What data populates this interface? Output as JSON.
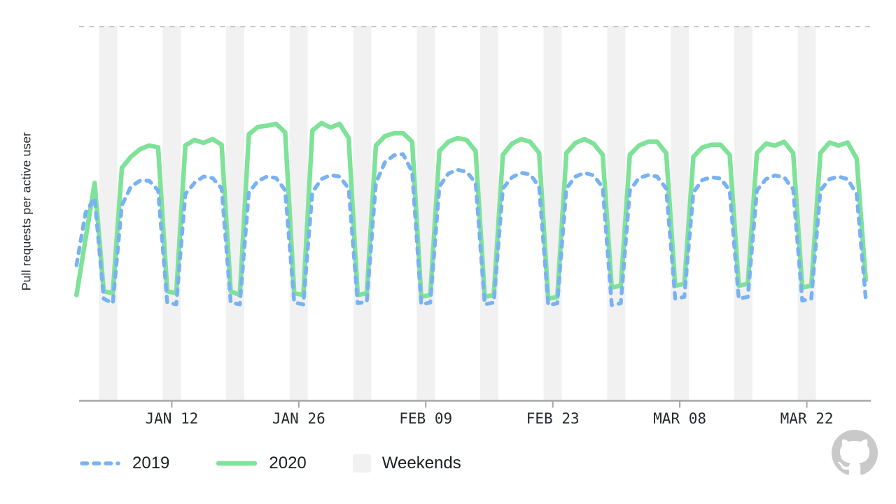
{
  "chart_data": {
    "type": "line",
    "title": "",
    "ylabel": "Pull requests per active user",
    "xlabel": "",
    "x_axis": {
      "tick_labels": [
        "JAN 12",
        "JAN 26",
        "FEB 09",
        "FEB 23",
        "MAR 08",
        "MAR 22"
      ],
      "tick_day_indices": [
        11,
        25,
        39,
        53,
        67,
        81
      ],
      "days_shown": 88,
      "start_day": "JAN 01"
    },
    "y_axis": {
      "tick_labels": [],
      "note": "axis unlabeled; values are relative units 0-100 where 100 = top dashed gridline",
      "range": [
        0,
        100
      ],
      "top_gridline": 100
    },
    "grid": {
      "top_dashed_gridline": true,
      "other_gridlines": false
    },
    "legend_position": "bottom-left",
    "weekend_bands": {
      "first_start_day_index": 3,
      "count": 12,
      "length_days": 2,
      "color": "#f1f1f1"
    },
    "series": [
      {
        "name": "2020",
        "style": "solid",
        "color": "#7ee298",
        "values": [
          28,
          43,
          58,
          29,
          28.5,
          62,
          65,
          67,
          68,
          67.5,
          29,
          28.5,
          68,
          69.5,
          68.7,
          69.7,
          68.2,
          29,
          28,
          71,
          73,
          73.3,
          73.8,
          71.5,
          28.5,
          28,
          72,
          74,
          72.8,
          73.8,
          70,
          28,
          28.5,
          68,
          70.5,
          71.3,
          71.3,
          69,
          27.5,
          28,
          66.5,
          69,
          70,
          69.5,
          66.5,
          27.5,
          28,
          65.5,
          68.5,
          69.7,
          69,
          66,
          27,
          27.5,
          66,
          68.7,
          69.7,
          68.5,
          65.5,
          30,
          30.5,
          65.5,
          68,
          69,
          69,
          66,
          30.5,
          31,
          65,
          67.5,
          68.2,
          68.2,
          65.5,
          30.5,
          31,
          66,
          68.5,
          68,
          69,
          66,
          30,
          30.5,
          66,
          68.8,
          68,
          68.8,
          64.5,
          32
        ]
      },
      {
        "name": "2019",
        "style": "dashed",
        "color": "#79b2f2",
        "values": [
          36,
          50,
          54,
          27,
          25.8,
          52,
          57,
          58.6,
          58.6,
          56,
          26,
          25.5,
          55,
          58,
          59.7,
          59.3,
          56.5,
          26,
          25.5,
          55.5,
          58.5,
          59.7,
          59.3,
          56,
          26,
          25.5,
          55.5,
          59,
          60.1,
          59.7,
          56.5,
          25.8,
          26.2,
          58,
          63.5,
          65.4,
          65.7,
          61,
          25.5,
          26,
          57,
          60.5,
          61.5,
          61,
          58,
          25.5,
          26,
          56.5,
          59.5,
          60.7,
          60.3,
          57,
          25.3,
          25.8,
          56.5,
          59.7,
          60.7,
          60,
          56.8,
          25.3,
          25.8,
          56,
          59.3,
          60.1,
          59.7,
          56.5,
          27,
          27.5,
          55.5,
          58.8,
          59.5,
          59.2,
          56,
          27,
          27.5,
          56,
          59,
          60,
          59.5,
          56.3,
          26.5,
          27,
          56,
          59,
          59.7,
          59,
          55,
          27
        ]
      }
    ],
    "colors": {
      "series_2019": "#79b2f2",
      "series_2020": "#7ee298",
      "weekend_band": "#f1f1f1",
      "top_gridline": "#c8c8c8",
      "axis_line": "#a6a6a6",
      "tick_label": "#24292e"
    }
  },
  "legend": {
    "items": [
      {
        "label": "2019",
        "swatch": "dashed-line",
        "color": "#79b2f2"
      },
      {
        "label": "2020",
        "swatch": "solid-line",
        "color": "#7ee298"
      },
      {
        "label": "Weekends",
        "swatch": "square",
        "color": "#f1f1f1"
      }
    ]
  },
  "branding": {
    "logo": "github-octocat-logo",
    "color": "#c9c9c9"
  }
}
